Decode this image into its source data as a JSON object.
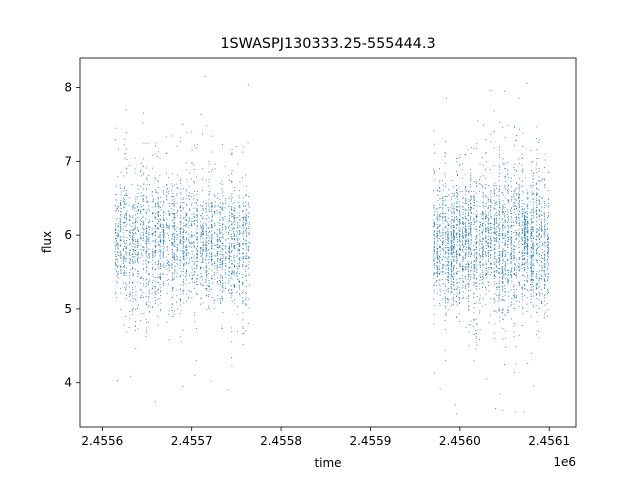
{
  "chart_data": {
    "type": "scatter",
    "title": "1SWASPJ130333.25-555444.3",
    "xlabel": "time",
    "ylabel": "flux",
    "x_offset_label": "1e6",
    "x_tick_labels": [
      "2.4556",
      "2.4557",
      "2.4558",
      "2.4559",
      "2.4560",
      "2.4561"
    ],
    "x_ticks": [
      2455600,
      2455700,
      2455800,
      2455900,
      2456000,
      2456100
    ],
    "y_ticks": [
      4,
      5,
      6,
      7,
      8
    ],
    "xlim": [
      2455575,
      2456130
    ],
    "ylim": [
      3.4,
      8.4
    ],
    "grid": false,
    "marker_color": "#1f77b4",
    "segments": [
      {
        "x_range": [
          2455613,
          2455765
        ],
        "y_center": 5.9,
        "y_spread": 0.42,
        "points": 2600
      },
      {
        "x_range": [
          2455970,
          2456100
        ],
        "y_center": 5.9,
        "y_spread": 0.45,
        "points": 3000
      }
    ],
    "outliers": [
      [
        2455715,
        8.15
      ],
      [
        2455615,
        7.45
      ],
      [
        2455625,
        7.3
      ],
      [
        2455690,
        7.5
      ],
      [
        2455700,
        7.4
      ],
      [
        2456050,
        7.95
      ],
      [
        2456066,
        7.85
      ],
      [
        2455985,
        7.85
      ],
      [
        2456020,
        7.55
      ],
      [
        2455750,
        7.2
      ],
      [
        2455763,
        7.25
      ],
      [
        2455630,
        4.75
      ],
      [
        2455688,
        4.55
      ],
      [
        2455705,
        4.3
      ],
      [
        2455740,
        3.9
      ],
      [
        2455690,
        3.95
      ],
      [
        2456045,
        3.85
      ],
      [
        2456040,
        3.65
      ],
      [
        2456062,
        3.6
      ],
      [
        2456072,
        3.6
      ],
      [
        2456030,
        4.05
      ],
      [
        2456050,
        4.25
      ],
      [
        2455995,
        3.7
      ],
      [
        2456010,
        4.5
      ],
      [
        2456080,
        4.4
      ]
    ]
  }
}
